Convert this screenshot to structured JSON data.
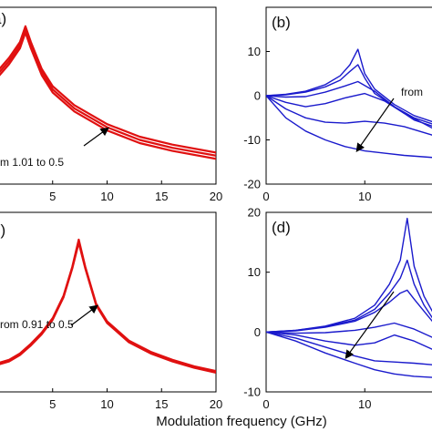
{
  "colors": {
    "panel_a": "#e01010",
    "panel_b": "#1a1acc",
    "panel_c": "#e01010",
    "panel_d": "#1a1acc",
    "axis": "#000000",
    "arrow": "#000000"
  },
  "xlabel": "Modulation frequency (GHz)",
  "chart_data": [
    {
      "type": "line",
      "panel": "a",
      "panel_label": "a)",
      "xlim": [
        0,
        20
      ],
      "x_ticks": [
        "5",
        "10",
        "15",
        "20"
      ],
      "y_ticks": [],
      "annotation": "m 1.01 to 0.5",
      "series": [
        {
          "x": [
            0,
            1,
            2,
            2.5,
            3,
            4,
            5,
            7,
            10,
            13,
            16,
            20
          ],
          "y": [
            0.72,
            0.8,
            0.9,
            1.0,
            0.9,
            0.73,
            0.62,
            0.5,
            0.38,
            0.3,
            0.25,
            0.2
          ]
        },
        {
          "x": [
            0,
            1,
            2,
            2.5,
            3,
            4,
            5,
            7,
            10,
            13,
            16,
            20
          ],
          "y": [
            0.7,
            0.78,
            0.88,
            0.98,
            0.88,
            0.71,
            0.6,
            0.48,
            0.36,
            0.28,
            0.23,
            0.18
          ]
        },
        {
          "x": [
            0,
            1,
            2,
            2.5,
            3,
            4,
            5,
            7,
            10,
            13,
            16,
            20
          ],
          "y": [
            0.68,
            0.76,
            0.86,
            0.96,
            0.86,
            0.69,
            0.58,
            0.46,
            0.34,
            0.26,
            0.21,
            0.16
          ]
        }
      ]
    },
    {
      "type": "line",
      "panel": "b",
      "panel_label": "(b)",
      "xlim": [
        0,
        17
      ],
      "ylim": [
        -20,
        20
      ],
      "x_ticks": [
        "0",
        "10"
      ],
      "y_ticks": [
        "10",
        "0",
        "-10",
        "-20"
      ],
      "annotation": "from",
      "series": [
        {
          "x": [
            0,
            2,
            4,
            6,
            7.5,
            8.5,
            9.3,
            10,
            11,
            13,
            15,
            17
          ],
          "y": [
            0,
            0.3,
            1,
            2.5,
            4.5,
            7,
            10.5,
            5,
            1.5,
            -2,
            -4.5,
            -6
          ]
        },
        {
          "x": [
            0,
            2,
            4,
            6,
            7.5,
            8.5,
            9.3,
            10,
            11,
            13,
            15,
            17
          ],
          "y": [
            0,
            0.2,
            0.8,
            2,
            3.5,
            5.5,
            7,
            4,
            0.5,
            -2.5,
            -5,
            -6.5
          ]
        },
        {
          "x": [
            0,
            2,
            4,
            6,
            8,
            9.3,
            11,
            13,
            15,
            17
          ],
          "y": [
            0,
            -0.3,
            -0.2,
            0.8,
            2.2,
            3.2,
            1,
            -2.5,
            -5.5,
            -7
          ]
        },
        {
          "x": [
            0,
            2,
            4,
            6,
            8,
            10,
            12,
            14,
            17
          ],
          "y": [
            0,
            -1.5,
            -2.5,
            -1.8,
            -0.5,
            0.5,
            -1.2,
            -4,
            -7.5
          ]
        },
        {
          "x": [
            0,
            2,
            4,
            6,
            8,
            10,
            12,
            14,
            17
          ],
          "y": [
            0,
            -3,
            -5,
            -6,
            -6.2,
            -5.8,
            -6.2,
            -7,
            -9
          ]
        },
        {
          "x": [
            0,
            2,
            4,
            6,
            8,
            10,
            12,
            14,
            17
          ],
          "y": [
            0,
            -5,
            -8,
            -10,
            -11.5,
            -12.5,
            -13,
            -13.5,
            -14
          ]
        }
      ]
    },
    {
      "type": "line",
      "panel": "c",
      "panel_label": "c)",
      "xlim": [
        0,
        20
      ],
      "x_ticks": [
        "5",
        "10",
        "15",
        "20"
      ],
      "y_ticks": [],
      "annotation": "rom 0.91 to 0.5",
      "series": [
        {
          "x": [
            0,
            1,
            2,
            3,
            4,
            5,
            6,
            6.8,
            7.4,
            8,
            9,
            10,
            12,
            14,
            16,
            18,
            20
          ],
          "y": [
            0.18,
            0.2,
            0.24,
            0.3,
            0.37,
            0.46,
            0.6,
            0.78,
            0.95,
            0.78,
            0.55,
            0.44,
            0.32,
            0.25,
            0.2,
            0.16,
            0.13
          ]
        },
        {
          "x": [
            0,
            1,
            2,
            3,
            4,
            5,
            6,
            6.8,
            7.4,
            8,
            9,
            10,
            12,
            14,
            16,
            18,
            20
          ],
          "y": [
            0.17,
            0.19,
            0.23,
            0.29,
            0.36,
            0.45,
            0.59,
            0.77,
            0.93,
            0.77,
            0.54,
            0.43,
            0.31,
            0.24,
            0.19,
            0.15,
            0.12
          ]
        }
      ]
    },
    {
      "type": "line",
      "panel": "d",
      "panel_label": "(d)",
      "xlim": [
        0,
        17
      ],
      "ylim": [
        -10,
        20
      ],
      "x_ticks": [
        "0",
        "10"
      ],
      "y_ticks": [
        "20",
        "10",
        "0",
        "-10"
      ],
      "series": [
        {
          "x": [
            0,
            3,
            6,
            9,
            11,
            12.5,
            13.6,
            14.3,
            15,
            16,
            17
          ],
          "y": [
            0,
            0.3,
            1,
            2.3,
            4.5,
            8,
            12,
            19,
            11,
            6,
            3
          ]
        },
        {
          "x": [
            0,
            3,
            6,
            9,
            11,
            12.5,
            13.6,
            14.3,
            15,
            16,
            17
          ],
          "y": [
            0,
            0.3,
            0.9,
            2,
            3.8,
            6.5,
            9,
            12,
            8,
            4.5,
            2
          ]
        },
        {
          "x": [
            0,
            3,
            6,
            9,
            11,
            12.5,
            13.6,
            14.3,
            15,
            16,
            17
          ],
          "y": [
            0,
            0.2,
            0.8,
            1.8,
            3.3,
            5,
            6.5,
            7,
            5.5,
            3.5,
            1.5
          ]
        },
        {
          "x": [
            0,
            3,
            6,
            9,
            11,
            13,
            15,
            17
          ],
          "y": [
            0,
            -0.2,
            -0.1,
            0.3,
            0.8,
            1.5,
            0.5,
            -1
          ]
        },
        {
          "x": [
            0,
            3,
            6,
            9,
            11,
            13,
            15,
            17
          ],
          "y": [
            0,
            -0.5,
            -1.5,
            -2.2,
            -1.8,
            -0.5,
            -1.5,
            -3
          ]
        },
        {
          "x": [
            0,
            3,
            6,
            9,
            11,
            13,
            15,
            17
          ],
          "y": [
            0,
            -1,
            -2.5,
            -4,
            -4.8,
            -5,
            -5.2,
            -5.5
          ]
        },
        {
          "x": [
            0,
            3,
            6,
            9,
            11,
            13,
            15,
            17
          ],
          "y": [
            0,
            -1.5,
            -3.5,
            -5.2,
            -6.3,
            -7,
            -7.4,
            -7.6
          ]
        }
      ]
    }
  ]
}
